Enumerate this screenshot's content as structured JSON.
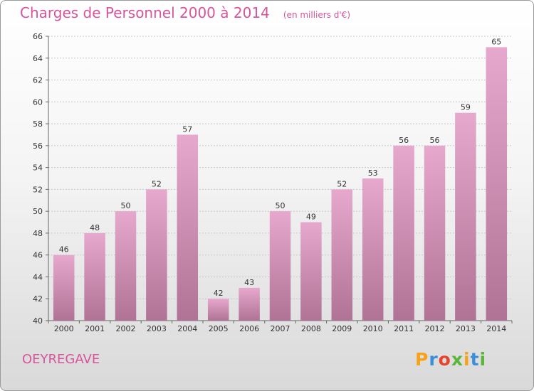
{
  "header": {
    "title": "Charges de Personnel 2000 à 2014",
    "subtitle": "(en milliers d'€)"
  },
  "location": "OEYREGAVE",
  "logo": {
    "letters": [
      "P",
      "r",
      "o",
      "x",
      "i",
      "t",
      "i"
    ],
    "colors": [
      "#f7a21b",
      "#3a8fd9",
      "#e8442c",
      "#5bb53a",
      "#f7a21b",
      "#3a8fd9",
      "#5bb53a"
    ]
  },
  "colors": {
    "bar_top": "#e6a8cc",
    "bar_bottom": "#b07396",
    "title": "#d6559b"
  },
  "chart_data": {
    "type": "bar",
    "title": "Charges de Personnel 2000 à 2014",
    "subtitle": "(en milliers d'€)",
    "categories": [
      "2000",
      "2001",
      "2002",
      "2003",
      "2004",
      "2005",
      "2006",
      "2007",
      "2008",
      "2009",
      "2010",
      "2011",
      "2012",
      "2013",
      "2014"
    ],
    "values": [
      46,
      48,
      50,
      52,
      57,
      42,
      43,
      50,
      49,
      52,
      53,
      56,
      56,
      59,
      65
    ],
    "ylim": [
      40,
      66
    ],
    "yticks": [
      40,
      42,
      44,
      46,
      48,
      50,
      52,
      54,
      56,
      58,
      60,
      62,
      64,
      66
    ],
    "grid": true,
    "data_labels": true
  }
}
